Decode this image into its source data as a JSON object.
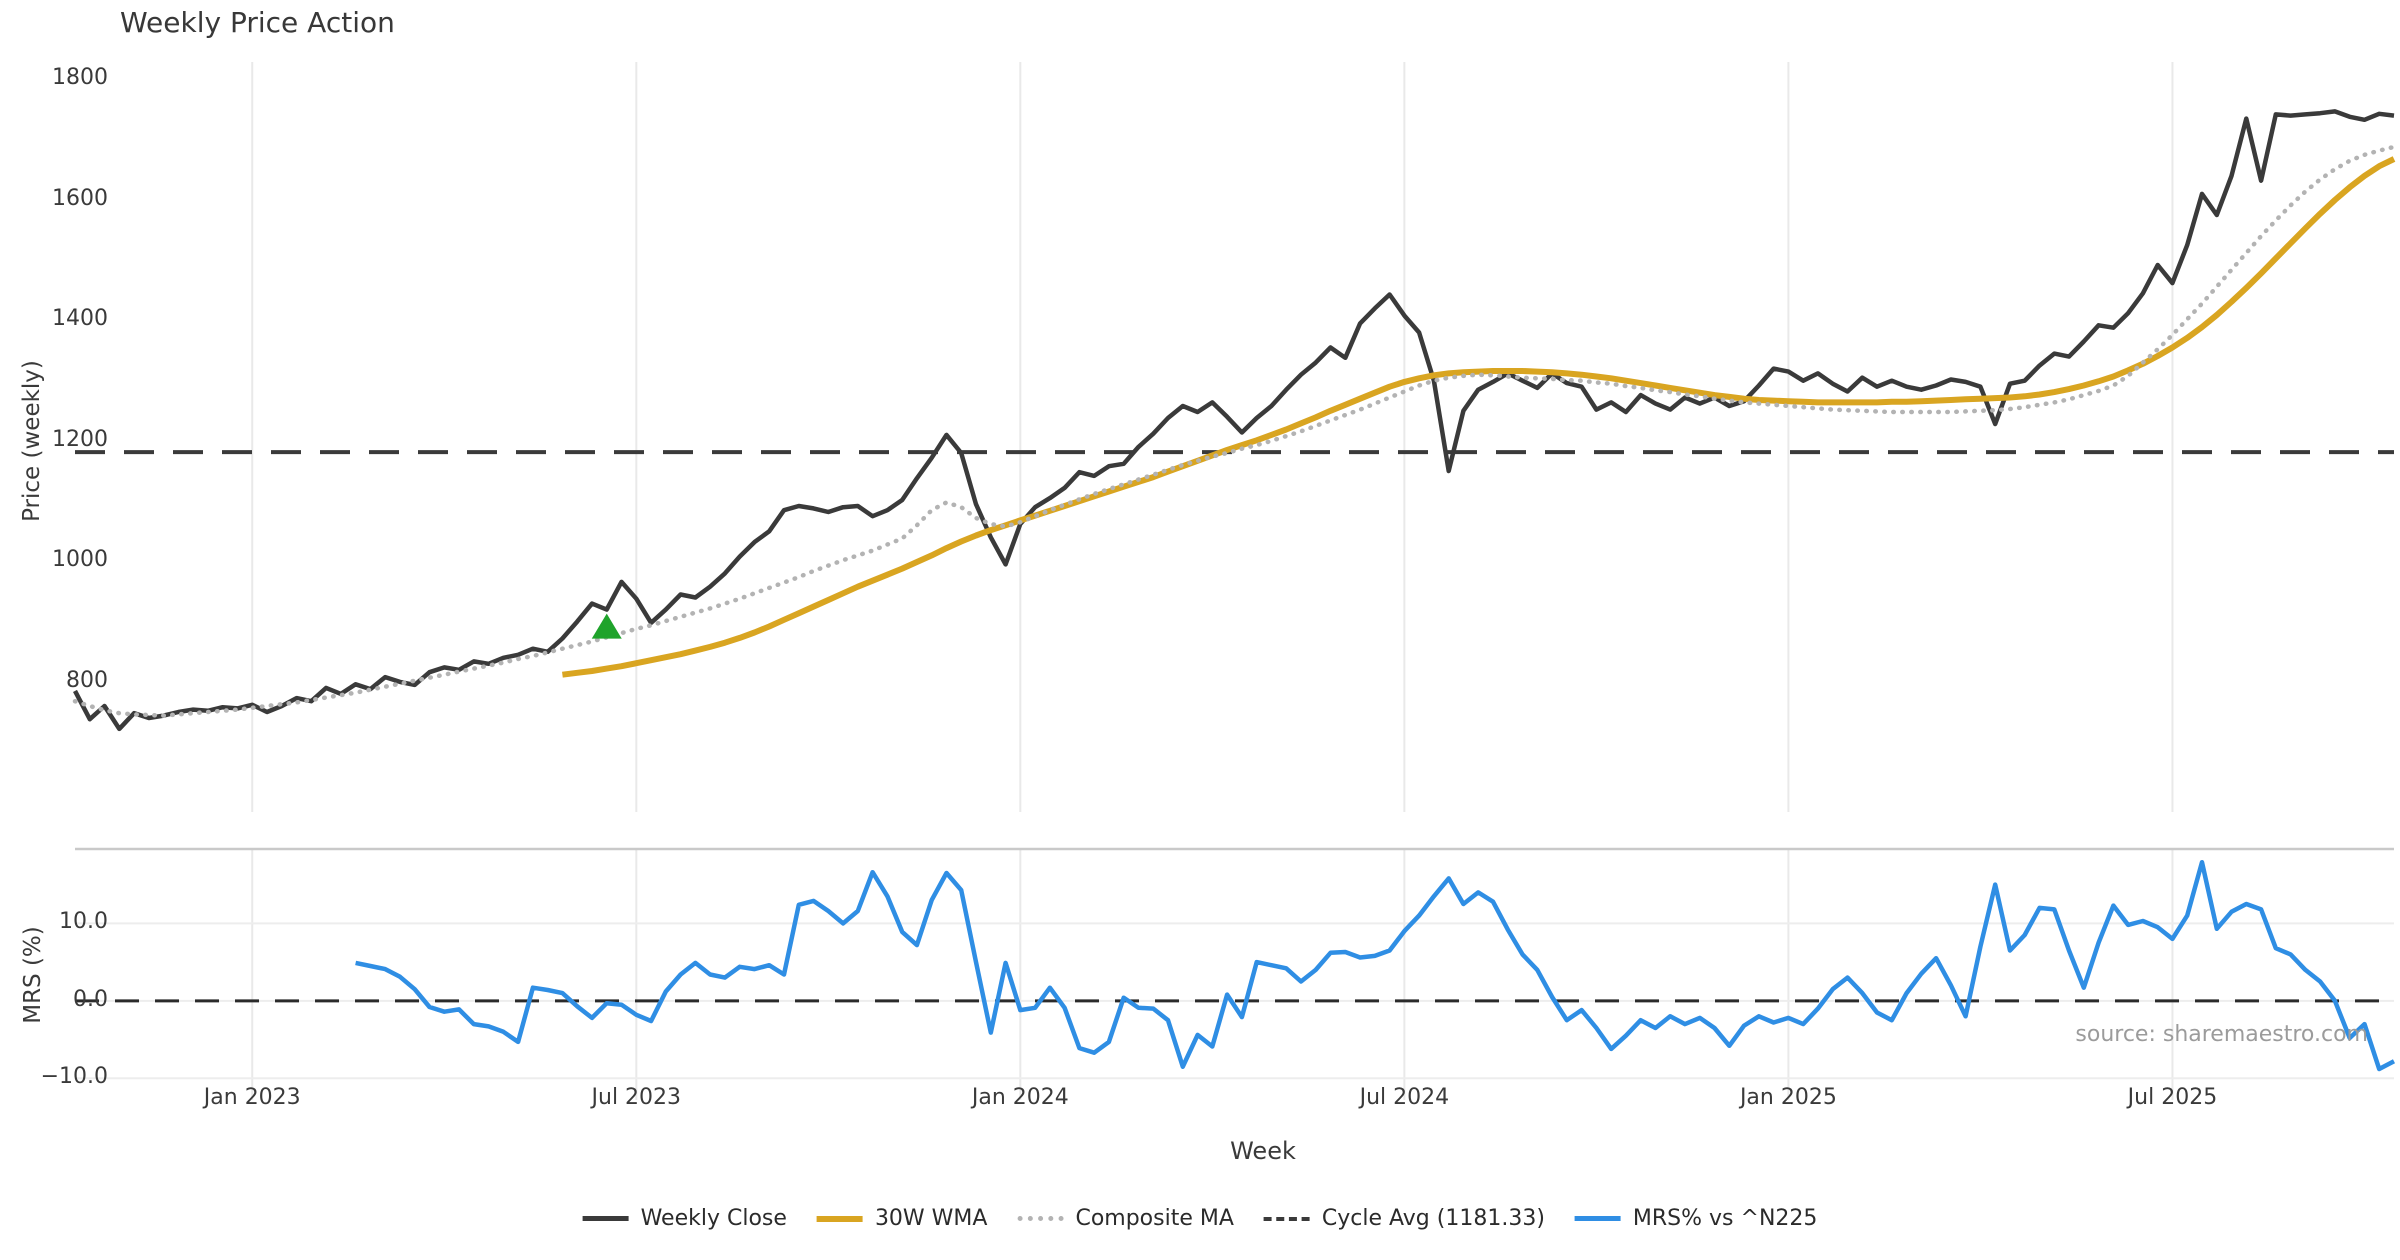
{
  "header": {
    "title": "Weekly Price Action"
  },
  "source_note": "source: sharemaestro.com",
  "legend": {
    "items": [
      {
        "label": "Weekly Close",
        "color": "#3a3a3a",
        "line": "solid",
        "weight": 5
      },
      {
        "label": "30W WMA",
        "color": "#d9a521",
        "line": "solid",
        "weight": 6
      },
      {
        "label": "Composite MA",
        "color": "#b3b3b3",
        "line": "dotted",
        "weight": 5
      },
      {
        "label": "Cycle Avg (1181.33)",
        "color": "#3a3a3a",
        "line": "dashed",
        "weight": 4
      },
      {
        "label": "MRS% vs ^N225",
        "color": "#2f8ee4",
        "line": "solid",
        "weight": 5
      }
    ]
  },
  "chart_data": {
    "type": "line",
    "title": "Weekly Price Action",
    "xlabel": "Week",
    "x_axis": {
      "unit": "week_index",
      "start": 0,
      "end": 157,
      "ticks": [
        {
          "week": 12,
          "label": "Jan 2023"
        },
        {
          "week": 38,
          "label": "Jul 2023"
        },
        {
          "week": 64,
          "label": "Jan 2024"
        },
        {
          "week": 90,
          "label": "Jul 2024"
        },
        {
          "week": 116,
          "label": "Jan 2025"
        },
        {
          "week": 142,
          "label": "Jul 2025"
        }
      ]
    },
    "style": {
      "grid_color": "#e9e9e9",
      "hgrid_color": "#ededed",
      "spine_color": "#c9c9c9",
      "background": "#ffffff"
    },
    "panels": [
      {
        "name": "price",
        "ylabel": "Price (weekly)",
        "ylim": [
          584,
          1829
        ],
        "yticks": [
          800,
          1000,
          1200,
          1400,
          1600,
          1800
        ],
        "ytick_labels": [
          "800",
          "1000",
          "1200",
          "1400",
          "1600",
          "1800"
        ],
        "grid": "vertical",
        "marker": {
          "shape": "triangle-up",
          "color": "#1fa32b",
          "week": 36,
          "price": 890
        },
        "hlines": [
          {
            "name": "Cycle Avg",
            "value": 1181.33,
            "color": "#3a3a3a",
            "style": "dashed",
            "weight": 4
          }
        ],
        "series": [
          {
            "name": "Weekly Close",
            "color": "#3a3a3a",
            "style": "solid",
            "weight": 4.5,
            "start_week": 0,
            "values": [
              785,
              738,
              760,
              722,
              748,
              740,
              744,
              750,
              754,
              752,
              758,
              756,
              762,
              750,
              760,
              773,
              768,
              790,
              780,
              796,
              788,
              808,
              800,
              795,
              816,
              824,
              820,
              834,
              830,
              840,
              845,
              855,
              850,
              872,
              900,
              930,
              920,
              966,
              938,
              898,
              920,
              945,
              940,
              958,
              980,
              1008,
              1032,
              1050,
              1085,
              1092,
              1088,
              1082,
              1090,
              1092,
              1075,
              1085,
              1102,
              1138,
              1172,
              1210,
              1180,
              1095,
              1040,
              995,
              1062,
              1090,
              1105,
              1122,
              1148,
              1142,
              1158,
              1162,
              1190,
              1212,
              1238,
              1258,
              1248,
              1264,
              1240,
              1214,
              1238,
              1258,
              1285,
              1310,
              1330,
              1355,
              1338,
              1395,
              1420,
              1443,
              1408,
              1380,
              1300,
              1150,
              1250,
              1285,
              1298,
              1312,
              1300,
              1288,
              1312,
              1296,
              1290,
              1252,
              1264,
              1248,
              1276,
              1262,
              1252,
              1272,
              1262,
              1272,
              1258,
              1266,
              1292,
              1320,
              1315,
              1300,
              1312,
              1295,
              1282,
              1305,
              1290,
              1300,
              1290,
              1285,
              1292,
              1302,
              1298,
              1290,
              1228,
              1295,
              1300,
              1325,
              1345,
              1340,
              1365,
              1392,
              1388,
              1412,
              1445,
              1492,
              1462,
              1525,
              1610,
              1575,
              1640,
              1735,
              1632,
              1742,
              1740,
              1742,
              1744,
              1747,
              1738,
              1733,
              1743,
              1740
            ]
          },
          {
            "name": "30W WMA",
            "color": "#d9a521",
            "style": "solid",
            "weight": 6,
            "start_week": 33,
            "values": [
              812,
              815,
              818,
              822,
              826,
              831,
              836,
              841,
              846,
              852,
              858,
              865,
              873,
              882,
              892,
              903,
              914,
              925,
              936,
              947,
              958,
              968,
              978,
              988,
              999,
              1010,
              1022,
              1033,
              1043,
              1052,
              1060,
              1068,
              1076,
              1084,
              1092,
              1100,
              1108,
              1116,
              1124,
              1132,
              1140,
              1149,
              1158,
              1167,
              1176,
              1185,
              1193,
              1201,
              1210,
              1219,
              1229,
              1239,
              1250,
              1260,
              1270,
              1280,
              1290,
              1298,
              1304,
              1309,
              1312,
              1314,
              1315,
              1316,
              1316,
              1316,
              1315,
              1314,
              1312,
              1310,
              1307,
              1304,
              1300,
              1296,
              1292,
              1288,
              1284,
              1280,
              1276,
              1273,
              1270,
              1268,
              1267,
              1266,
              1265,
              1264,
              1264,
              1264,
              1264,
              1264,
              1265,
              1265,
              1266,
              1267,
              1268,
              1269,
              1270,
              1271,
              1272,
              1274,
              1277,
              1281,
              1286,
              1292,
              1299,
              1307,
              1317,
              1328,
              1341,
              1355,
              1371,
              1389,
              1409,
              1431,
              1454,
              1478,
              1503,
              1528,
              1553,
              1577,
              1600,
              1621,
              1640,
              1656,
              1668
            ]
          },
          {
            "name": "Composite MA",
            "color": "#b3b3b3",
            "style": "dotted",
            "weight": 4.5,
            "start_week": 0,
            "values": [
              768,
              760,
              753,
              748,
              746,
              745,
              744,
              746,
              748,
              750,
              752,
              754,
              757,
              760,
              763,
              766,
              770,
              774,
              778,
              782,
              787,
              792,
              797,
              802,
              807,
              812,
              817,
              822,
              827,
              832,
              838,
              843,
              849,
              855,
              861,
              867,
              874,
              881,
              888,
              894,
              901,
              908,
              915,
              922,
              930,
              938,
              947,
              956,
              965,
              974,
              984,
              993,
              1002,
              1010,
              1018,
              1028,
              1038,
              1060,
              1085,
              1098,
              1090,
              1072,
              1062,
              1058,
              1065,
              1075,
              1085,
              1094,
              1103,
              1112,
              1120,
              1128,
              1136,
              1144,
              1152,
              1160,
              1167,
              1174,
              1180,
              1187,
              1193,
              1200,
              1208,
              1216,
              1225,
              1234,
              1243,
              1252,
              1262,
              1272,
              1282,
              1292,
              1300,
              1305,
              1308,
              1310,
              1309,
              1307,
              1305,
              1304,
              1303,
              1301,
              1300,
              1297,
              1295,
              1291,
              1288,
              1284,
              1281,
              1277,
              1274,
              1270,
              1267,
              1264,
              1262,
              1260,
              1258,
              1256,
              1254,
              1252,
              1251,
              1250,
              1249,
              1248,
              1248,
              1248,
              1248,
              1248,
              1249,
              1250,
              1251,
              1253,
              1256,
              1260,
              1264,
              1269,
              1276,
              1283,
              1292,
              1308,
              1330,
              1352,
              1376,
              1402,
              1428,
              1456,
              1484,
              1512,
              1540,
              1566,
              1591,
              1614,
              1634,
              1651,
              1665,
              1675,
              1682,
              1688
            ]
          }
        ]
      },
      {
        "name": "mrs",
        "ylabel": "MRS (%)",
        "ylim": [
          -12.8,
          19.6
        ],
        "yticks": [
          10,
          0,
          -10
        ],
        "ytick_labels": [
          "10.0",
          "0.0",
          "−10.0"
        ],
        "grid": "both",
        "top_spine": true,
        "hlines": [
          {
            "name": "Zero line",
            "value": 0,
            "color": "#2b2b2b",
            "style": "dashed",
            "weight": 3
          }
        ],
        "series": [
          {
            "name": "MRS% vs ^N225",
            "color": "#2f8ee4",
            "style": "solid",
            "weight": 4.5,
            "start_week": 19,
            "values": [
              4.9,
              4.5,
              4.1,
              3.1,
              1.5,
              -0.8,
              -1.4,
              -1.1,
              -3.0,
              -3.3,
              -4.0,
              -5.3,
              1.7,
              1.4,
              1.0,
              -0.7,
              -2.2,
              -0.3,
              -0.5,
              -1.8,
              -2.6,
              1.2,
              3.4,
              4.9,
              3.4,
              3.0,
              4.4,
              4.1,
              4.6,
              3.4,
              12.4,
              12.9,
              11.6,
              10.0,
              11.6,
              16.6,
              13.5,
              8.9,
              7.2,
              13.0,
              16.5,
              14.3,
              5.0,
              -4.1,
              4.9,
              -1.2,
              -0.9,
              1.7,
              -0.9,
              -6.1,
              -6.7,
              -5.3,
              0.4,
              -0.9,
              -1.0,
              -2.5,
              -8.5,
              -4.4,
              -5.9,
              0.8,
              -2.1,
              5.0,
              4.6,
              4.2,
              2.5,
              4.0,
              6.2,
              6.3,
              5.6,
              5.8,
              6.5,
              9.0,
              11.0,
              13.5,
              15.8,
              12.5,
              14.0,
              12.8,
              9.2,
              6.0,
              4.0,
              0.5,
              -2.5,
              -1.2,
              -3.5,
              -6.2,
              -4.5,
              -2.5,
              -3.5,
              -2.0,
              -3.0,
              -2.2,
              -3.5,
              -5.8,
              -3.2,
              -2.0,
              -2.8,
              -2.2,
              -3.0,
              -1.0,
              1.5,
              3.0,
              1.0,
              -1.5,
              -2.5,
              1.0,
              3.5,
              5.5,
              2.0,
              -2.0,
              7.0,
              15.0,
              6.5,
              8.5,
              12.0,
              11.8,
              6.5,
              1.7,
              7.5,
              12.3,
              9.8,
              10.3,
              9.5,
              8.0,
              11.0,
              17.9,
              9.3,
              11.5,
              12.5,
              11.8,
              6.8,
              6.0,
              4.0,
              2.5,
              0.0,
              -4.8,
              -3.0,
              -8.8,
              -7.8
            ]
          }
        ]
      }
    ]
  }
}
